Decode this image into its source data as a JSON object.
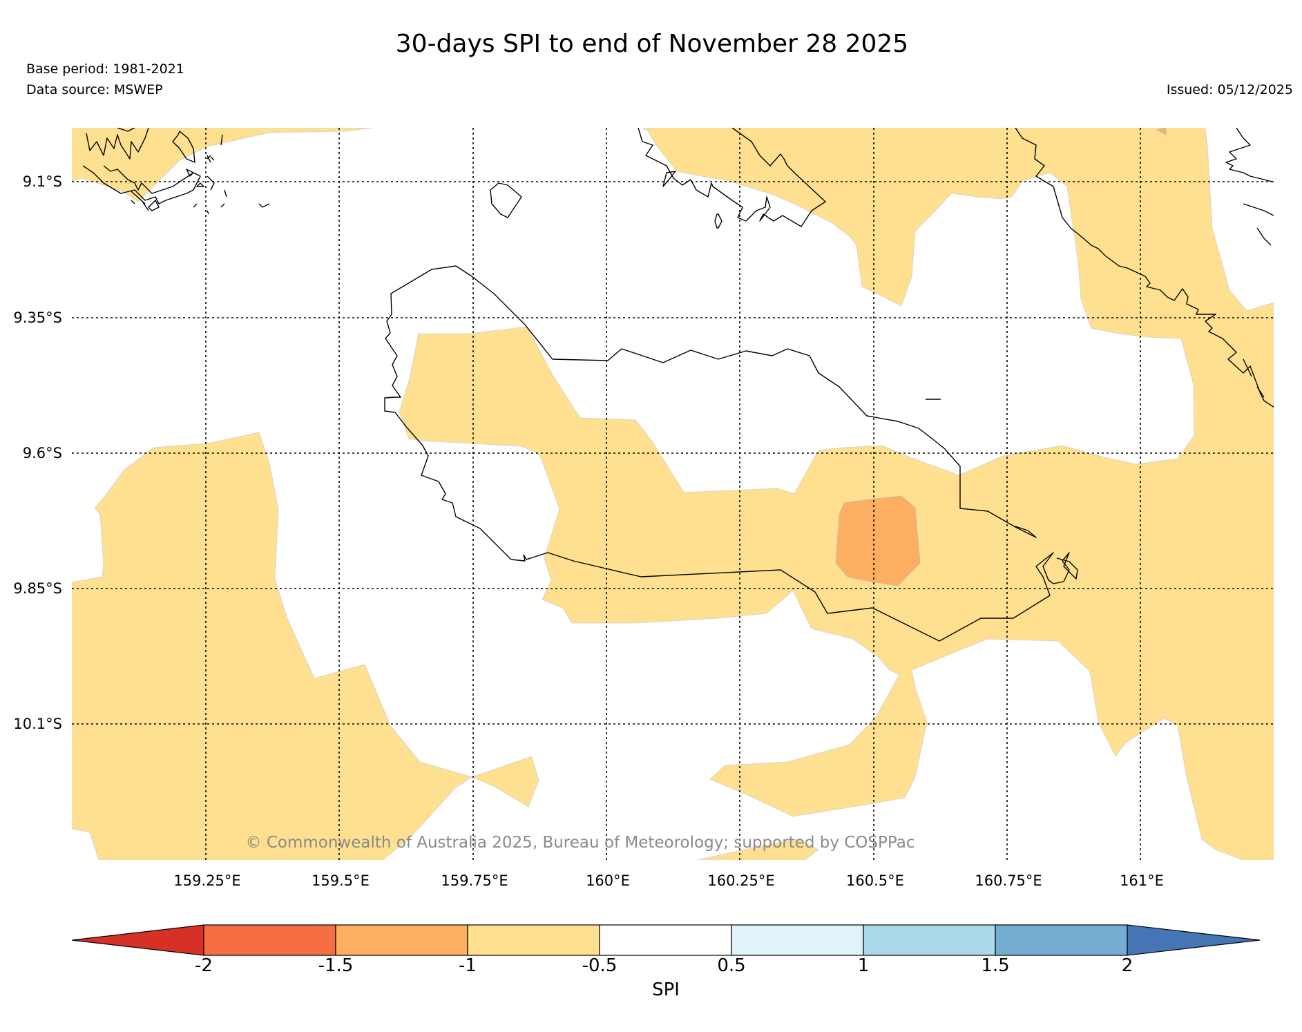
{
  "header": {
    "title": "30-days SPI to end of November 28 2025",
    "base_period": "Base period: 1981-2021",
    "data_source": "Data source: MSWEP",
    "issued": "Issued: 05/12/2025"
  },
  "map": {
    "lat_labels": [
      "9.1°S",
      "9.35°S",
      "9.6°S",
      "9.85°S",
      "10.1°S"
    ],
    "lon_labels": [
      "159.25°E",
      "159.5°E",
      "159.75°E",
      "160°E",
      "160.25°E",
      "160.5°E",
      "160.75°E",
      "161°E"
    ],
    "credit": "© Commonwealth of Australia 2025, Bureau of Meteorology; supported by COSPPac",
    "colors": {
      "spi_-1_to_-0.5": "#fee090",
      "spi_-1.5_to_-1": "#fdae61",
      "coastline": "#000000",
      "gridline": "#000000"
    }
  },
  "colorbar": {
    "label": "SPI",
    "ticks": [
      "-2",
      "-1.5",
      "-1",
      "-0.5",
      "0.5",
      "1",
      "1.5",
      "2"
    ],
    "bins": [
      {
        "range": "< -2",
        "color": "#d73027"
      },
      {
        "range": "-2 to -1.5",
        "color": "#f46d43"
      },
      {
        "range": "-1.5 to -1",
        "color": "#fdae61"
      },
      {
        "range": "-1 to -0.5",
        "color": "#fee090"
      },
      {
        "range": "-0.5 to 0.5",
        "color": "#ffffff"
      },
      {
        "range": "0.5 to 1",
        "color": "#e0f3f8"
      },
      {
        "range": "1 to 1.5",
        "color": "#abd9e9"
      },
      {
        "range": "1.5 to 2",
        "color": "#74add1"
      },
      {
        "range": "> 2",
        "color": "#4575b4"
      }
    ]
  }
}
